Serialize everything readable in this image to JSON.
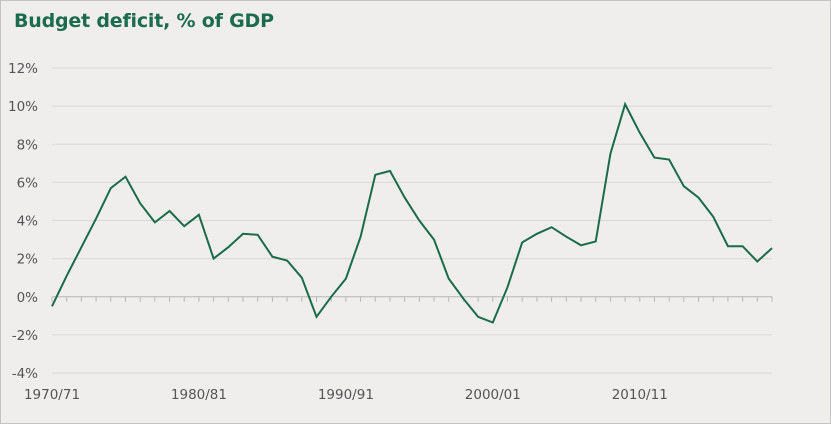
{
  "chart_data": {
    "type": "line",
    "title": "Budget deficit, % of GDP",
    "xlabel": "",
    "ylabel": "",
    "ylim": [
      -4,
      12
    ],
    "yticks": [
      12,
      10,
      8,
      6,
      4,
      2,
      0,
      -2,
      -4
    ],
    "ytick_labels": [
      "12%",
      "10%",
      "8%",
      "6%",
      "4%",
      "2%",
      "0%",
      "-2%",
      "-4%"
    ],
    "xtick_labels": [
      {
        "year": 1970,
        "label": "1970/71"
      },
      {
        "year": 1980,
        "label": "1980/81"
      },
      {
        "year": 1990,
        "label": "1990/91"
      },
      {
        "year": 2000,
        "label": "2000/01"
      },
      {
        "year": 2010,
        "label": "2010/11"
      }
    ],
    "xlim": [
      1970,
      2019
    ],
    "grid": true,
    "legend": "none",
    "colors": {
      "line": "#1a6b4a",
      "title": "#1d6b4f",
      "grid": "#d9d8d6",
      "axis": "#b5b5b5",
      "background": "#efeeed"
    },
    "series": [
      {
        "name": "Budget deficit",
        "x": [
          1970,
          1971,
          1972,
          1973,
          1974,
          1975,
          1976,
          1977,
          1978,
          1979,
          1980,
          1981,
          1982,
          1983,
          1984,
          1985,
          1986,
          1987,
          1988,
          1989,
          1990,
          1991,
          1992,
          1993,
          1994,
          1995,
          1996,
          1997,
          1998,
          1999,
          2000,
          2001,
          2002,
          2003,
          2004,
          2005,
          2006,
          2007,
          2008,
          2009,
          2010,
          2011,
          2012,
          2013,
          2014,
          2015,
          2016,
          2017,
          2018,
          2019
        ],
        "values": [
          -0.5,
          1.1,
          2.6,
          4.1,
          5.7,
          6.3,
          4.9,
          3.9,
          4.5,
          3.7,
          4.3,
          2.0,
          2.6,
          3.3,
          3.25,
          2.1,
          1.9,
          1.0,
          -1.05,
          0.0,
          0.95,
          3.15,
          6.4,
          6.6,
          5.2,
          4.0,
          3.0,
          0.95,
          -0.1,
          -1.05,
          -1.35,
          0.5,
          2.85,
          3.3,
          3.65,
          3.15,
          2.7,
          2.9,
          7.5,
          10.1,
          8.6,
          7.3,
          7.2,
          5.8,
          5.2,
          4.2,
          2.65,
          2.65,
          1.85,
          2.55
        ]
      }
    ]
  }
}
